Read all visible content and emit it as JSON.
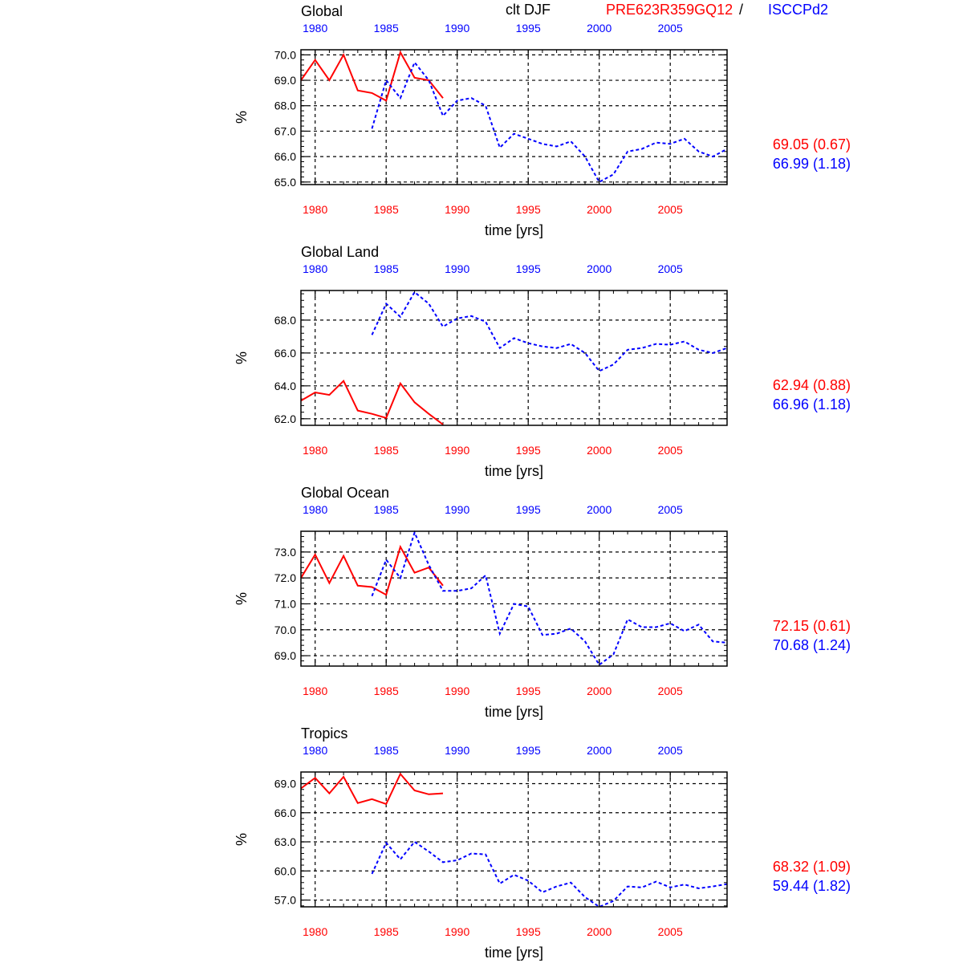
{
  "header": {
    "variable": "clt DJF",
    "model": "PRE623R359GQ12",
    "separator": "/",
    "obs": "ISCCPd2"
  },
  "colors": {
    "model": "#ff0000",
    "obs": "#0000ff",
    "grid": "#000000"
  },
  "chart_data": [
    {
      "type": "line",
      "title": "Global",
      "xlabel": "time [yrs]",
      "ylabel": "%",
      "xlim": [
        1979,
        2009
      ],
      "ylim": [
        64.9,
        70.2
      ],
      "yticks": [
        65.0,
        66.0,
        67.0,
        68.0,
        69.0,
        70.0
      ],
      "ytick_labels": [
        "65.0",
        "66.0",
        "67.0",
        "68.0",
        "69.0",
        "70.0"
      ],
      "xticks": [
        1980,
        1985,
        1990,
        1995,
        2000,
        2005
      ],
      "xtick_labels": [
        "1980",
        "1985",
        "1990",
        "1995",
        "2000",
        "2005"
      ],
      "grid": true,
      "series": [
        {
          "name": "PRE623R359GQ12",
          "style": "solid",
          "x": [
            1979,
            1980,
            1981,
            1982,
            1983,
            1984,
            1985,
            1986,
            1987,
            1988,
            1989
          ],
          "values": [
            69.0,
            69.8,
            69.0,
            70.0,
            68.6,
            68.5,
            68.2,
            70.1,
            69.1,
            69.0,
            68.3
          ],
          "stat": "69.05 (0.67)"
        },
        {
          "name": "ISCCPd2",
          "style": "dashed",
          "x": [
            1984,
            1985,
            1986,
            1987,
            1988,
            1989,
            1990,
            1991,
            1992,
            1993,
            1994,
            1995,
            1996,
            1997,
            1998,
            1999,
            2000,
            2001,
            2002,
            2003,
            2004,
            2005,
            2006,
            2007,
            2008,
            2009
          ],
          "values": [
            67.1,
            69.0,
            68.3,
            69.7,
            69.0,
            67.6,
            68.2,
            68.3,
            68.0,
            66.35,
            66.9,
            66.7,
            66.5,
            66.4,
            66.6,
            66.0,
            65.0,
            65.3,
            66.2,
            66.3,
            66.55,
            66.5,
            66.7,
            66.2,
            66.0,
            66.3
          ],
          "stat": "66.99 (1.18)"
        }
      ]
    },
    {
      "type": "line",
      "title": "Global Land",
      "xlabel": "time [yrs]",
      "ylabel": "%",
      "xlim": [
        1979,
        2009
      ],
      "ylim": [
        61.6,
        69.8
      ],
      "yticks": [
        62.0,
        64.0,
        66.0,
        68.0
      ],
      "ytick_labels": [
        "62.0",
        "64.0",
        "66.0",
        "68.0"
      ],
      "xticks": [
        1980,
        1985,
        1990,
        1995,
        2000,
        2005
      ],
      "xtick_labels": [
        "1980",
        "1985",
        "1990",
        "1995",
        "2000",
        "2005"
      ],
      "grid": true,
      "series": [
        {
          "name": "PRE623R359GQ12",
          "style": "solid",
          "x": [
            1979,
            1980,
            1981,
            1982,
            1983,
            1984,
            1985,
            1986,
            1987,
            1988,
            1989
          ],
          "values": [
            63.1,
            63.6,
            63.45,
            64.3,
            62.5,
            62.3,
            62.05,
            64.15,
            63.0,
            62.3,
            61.65
          ],
          "stat": "62.94 (0.88)"
        },
        {
          "name": "ISCCPd2",
          "style": "dashed",
          "x": [
            1984,
            1985,
            1986,
            1987,
            1988,
            1989,
            1990,
            1991,
            1992,
            1993,
            1994,
            1995,
            1996,
            1997,
            1998,
            1999,
            2000,
            2001,
            2002,
            2003,
            2004,
            2005,
            2006,
            2007,
            2008,
            2009
          ],
          "values": [
            67.1,
            69.0,
            68.2,
            69.7,
            69.0,
            67.6,
            68.1,
            68.25,
            67.9,
            66.3,
            66.9,
            66.6,
            66.4,
            66.3,
            66.55,
            66.0,
            64.9,
            65.3,
            66.2,
            66.3,
            66.55,
            66.5,
            66.7,
            66.2,
            66.0,
            66.3
          ],
          "stat": "66.96 (1.18)"
        }
      ]
    },
    {
      "type": "line",
      "title": "Global Ocean",
      "xlabel": "time [yrs]",
      "ylabel": "%",
      "xlim": [
        1979,
        2009
      ],
      "ylim": [
        68.6,
        73.8
      ],
      "yticks": [
        69.0,
        70.0,
        71.0,
        72.0,
        73.0
      ],
      "ytick_labels": [
        "69.0",
        "70.0",
        "71.0",
        "72.0",
        "73.0"
      ],
      "xticks": [
        1980,
        1985,
        1990,
        1995,
        2000,
        2005
      ],
      "xtick_labels": [
        "1980",
        "1985",
        "1990",
        "1995",
        "2000",
        "2005"
      ],
      "grid": true,
      "series": [
        {
          "name": "PRE623R359GQ12",
          "style": "solid",
          "x": [
            1979,
            1980,
            1981,
            1982,
            1983,
            1984,
            1985,
            1986,
            1987,
            1988,
            1989
          ],
          "values": [
            72.0,
            72.9,
            71.8,
            72.85,
            71.7,
            71.65,
            71.35,
            73.2,
            72.2,
            72.4,
            71.7
          ],
          "stat": "72.15 (0.61)"
        },
        {
          "name": "ISCCPd2",
          "style": "dashed",
          "x": [
            1984,
            1985,
            1986,
            1987,
            1988,
            1989,
            1990,
            1991,
            1992,
            1993,
            1994,
            1995,
            1996,
            1997,
            1998,
            1999,
            2000,
            2001,
            2002,
            2003,
            2004,
            2005,
            2006,
            2007,
            2008,
            2009
          ],
          "values": [
            71.3,
            72.7,
            72.0,
            73.75,
            72.5,
            71.5,
            71.5,
            71.6,
            72.1,
            69.85,
            71.0,
            70.9,
            69.8,
            69.85,
            70.05,
            69.55,
            68.65,
            69.05,
            70.4,
            70.1,
            70.1,
            70.25,
            69.95,
            70.2,
            69.55,
            69.5
          ],
          "stat": "70.68 (1.24)"
        }
      ]
    },
    {
      "type": "line",
      "title": "Tropics",
      "xlabel": "time [yrs]",
      "ylabel": "%",
      "xlim": [
        1979,
        2009
      ],
      "ylim": [
        56.3,
        70.2
      ],
      "yticks": [
        57.0,
        60.0,
        63.0,
        66.0,
        69.0
      ],
      "ytick_labels": [
        "57.0",
        "60.0",
        "63.0",
        "66.0",
        "69.0"
      ],
      "xticks": [
        1980,
        1985,
        1990,
        1995,
        2000,
        2005
      ],
      "xtick_labels": [
        "1980",
        "1985",
        "1990",
        "1995",
        "2000",
        "2005"
      ],
      "grid": true,
      "series": [
        {
          "name": "PRE623R359GQ12",
          "style": "solid",
          "x": [
            1979,
            1980,
            1981,
            1982,
            1983,
            1984,
            1985,
            1986,
            1987,
            1988,
            1989
          ],
          "values": [
            68.5,
            69.6,
            68.0,
            69.7,
            67.0,
            67.4,
            66.9,
            70.0,
            68.3,
            67.9,
            68.0
          ],
          "stat": "68.32 (1.09)"
        },
        {
          "name": "ISCCPd2",
          "style": "dashed",
          "x": [
            1984,
            1985,
            1986,
            1987,
            1988,
            1989,
            1990,
            1991,
            1992,
            1993,
            1994,
            1995,
            1996,
            1997,
            1998,
            1999,
            2000,
            2001,
            2002,
            2003,
            2004,
            2005,
            2006,
            2007,
            2008,
            2009
          ],
          "values": [
            59.7,
            62.9,
            61.2,
            63.0,
            62.0,
            60.9,
            61.1,
            61.8,
            61.7,
            58.7,
            59.6,
            59.0,
            57.8,
            58.4,
            58.8,
            57.3,
            56.3,
            56.9,
            58.4,
            58.3,
            58.9,
            58.3,
            58.6,
            58.2,
            58.4,
            58.65
          ],
          "stat": "59.44 (1.82)"
        }
      ]
    }
  ]
}
